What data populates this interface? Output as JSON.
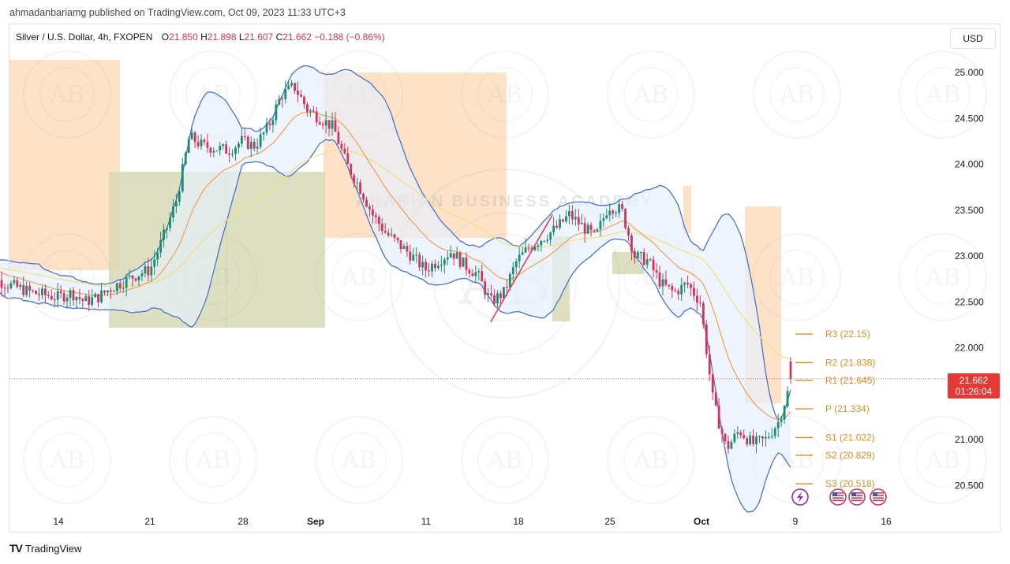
{
  "header": {
    "published_line": "ahmadanbariamg published on TradingView.com, Oct 09, 2023 11:33 UTC+3"
  },
  "legend": {
    "symbol": "Silver / U.S. Dollar, 4h, FXOPEN",
    "o_label": "O",
    "o": "21.850",
    "h_label": "H",
    "h": "21.898",
    "l_label": "L",
    "l": "21.607",
    "c_label": "C",
    "c": "21.662",
    "change": "−0.188 (−0.86%)"
  },
  "currency_button": "USD",
  "price_tag": {
    "price": "21.662",
    "countdown": "01:26:04"
  },
  "footer": {
    "brand": "TradingView"
  },
  "watermark": {
    "text": "ARABIAN BUSINESS ACADEMY",
    "monogram": "AB"
  },
  "colors": {
    "up": "#1f8a70",
    "down": "#d1345b",
    "bb": "#4a74c9",
    "bb_fill": "#e6f0fb",
    "ema_fast": "#f0a050",
    "ema_slow": "#f2e27a",
    "zone_orange": "#fcd8b4",
    "zone_olive": "#d4d8b0",
    "pivot": "#d8901f",
    "trend_line": "#e04050",
    "price_tag": "#e53935"
  },
  "chart_data": {
    "type": "candlestick",
    "symbol": "Silver / U.S. Dollar",
    "timeframe": "4h",
    "exchange": "FXOPEN",
    "y_axis": {
      "ticks": [
        "25.000",
        "24.500",
        "24.000",
        "23.500",
        "23.000",
        "22.500",
        "22.000",
        "21.000",
        "20.500"
      ],
      "range": [
        20.4,
        25.2
      ]
    },
    "x_axis": {
      "ticks": [
        "14",
        "21",
        "28",
        "Sep",
        "11",
        "18",
        "25",
        "Oct",
        "9",
        "16"
      ],
      "bold_ticks": [
        "Sep",
        "Oct"
      ]
    },
    "current_price": 21.662,
    "pivot_levels": [
      {
        "name": "R3",
        "label": "R3 (22.15)",
        "value": 22.15
      },
      {
        "name": "R2",
        "label": "R2 (21.838)",
        "value": 21.838
      },
      {
        "name": "R1",
        "label": "R1 (21.645)",
        "value": 21.645
      },
      {
        "name": "P",
        "label": "P (21.334)",
        "value": 21.334
      },
      {
        "name": "S1",
        "label": "S1 (21.022)",
        "value": 21.022
      },
      {
        "name": "S2",
        "label": "S2 (20.829)",
        "value": 20.829
      },
      {
        "name": "S3",
        "label": "S3 (20.518)",
        "value": 20.518
      }
    ],
    "close_path": [
      [
        "Aug 08",
        22.9
      ],
      [
        "Aug 09",
        22.75
      ],
      [
        "Aug 10",
        22.7
      ],
      [
        "Aug 11",
        22.65
      ],
      [
        "Aug 12",
        22.6
      ],
      [
        "Aug 14",
        22.55
      ],
      [
        "Aug 15",
        22.6
      ],
      [
        "Aug 16",
        22.5
      ],
      [
        "Aug 17",
        22.55
      ],
      [
        "Aug 18",
        22.65
      ],
      [
        "Aug 20",
        22.8
      ],
      [
        "Aug 21",
        22.85
      ],
      [
        "Aug 22",
        23.2
      ],
      [
        "Aug 23",
        23.6
      ],
      [
        "Aug 24",
        24.3
      ],
      [
        "Aug 25",
        24.2
      ],
      [
        "Aug 27",
        24.15
      ],
      [
        "Aug 28",
        24.25
      ],
      [
        "Aug 29",
        24.2
      ],
      [
        "Aug 30",
        24.4
      ],
      [
        "Aug 31",
        24.75
      ],
      [
        "Sep 01",
        24.85
      ],
      [
        "Sep 02",
        24.6
      ],
      [
        "Sep 04",
        24.4
      ],
      [
        "Sep 05",
        24.0
      ],
      [
        "Sep 06",
        23.75
      ],
      [
        "Sep 07",
        23.45
      ],
      [
        "Sep 08",
        23.25
      ],
      [
        "Sep 10",
        23.0
      ],
      [
        "Sep 11",
        22.85
      ],
      [
        "Sep 12",
        22.95
      ],
      [
        "Sep 13",
        23.05
      ],
      [
        "Sep 14",
        22.9
      ],
      [
        "Sep 15",
        22.8
      ],
      [
        "Sep 16",
        22.5
      ],
      [
        "Sep 17",
        22.6
      ],
      [
        "Sep 18",
        22.95
      ],
      [
        "Sep 19",
        23.1
      ],
      [
        "Sep 20",
        23.2
      ],
      [
        "Sep 21",
        23.3
      ],
      [
        "Sep 22",
        23.45
      ],
      [
        "Sep 24",
        23.2
      ],
      [
        "Sep 25",
        23.55
      ],
      [
        "Sep 26",
        23.5
      ],
      [
        "Sep 27",
        23.0
      ],
      [
        "Sep 28",
        22.95
      ],
      [
        "Sep 29",
        22.7
      ],
      [
        "Sep 30",
        22.6
      ],
      [
        "Oct 01",
        22.7
      ],
      [
        "Oct 02",
        22.5
      ],
      [
        "Oct 03",
        21.4
      ],
      [
        "Oct 04",
        20.9
      ],
      [
        "Oct 05",
        21.1
      ],
      [
        "Oct 06",
        20.95
      ],
      [
        "Oct 07",
        21.0
      ],
      [
        "Oct 08",
        21.2
      ],
      [
        "Oct 09",
        21.662
      ]
    ]
  }
}
